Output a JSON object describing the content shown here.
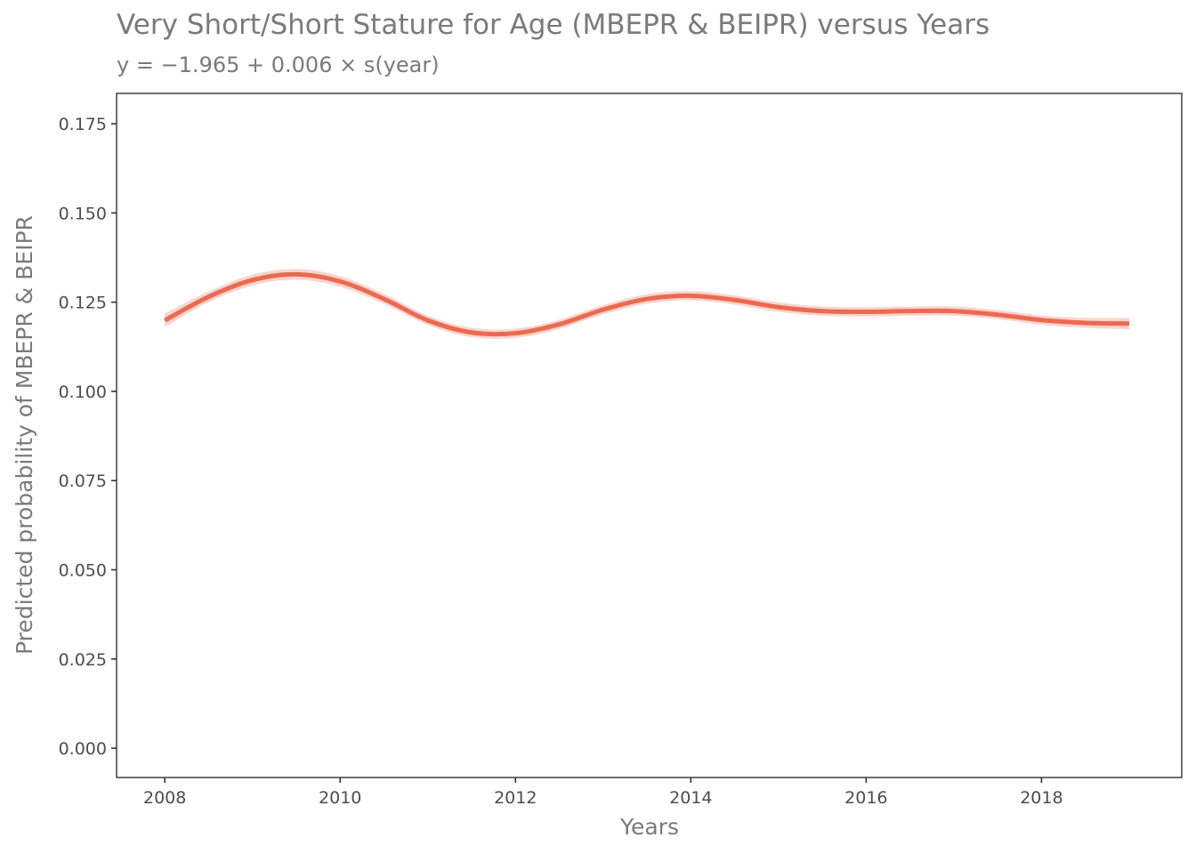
{
  "chart_data": {
    "type": "line",
    "title": "Very Short/Short Stature for Age (MBEPR & BEIPR) versus Years",
    "subtitle": "y = −1.965 + 0.006 × s(year)",
    "xlabel": "Years",
    "ylabel": "Predicted probability of MBEPR & BEIPR",
    "xlim": [
      2007.45,
      2019.6
    ],
    "ylim": [
      -0.0082,
      0.1835
    ],
    "x_ticks": [
      2008,
      2010,
      2012,
      2014,
      2016,
      2018
    ],
    "x_tick_labels": [
      "2008",
      "2010",
      "2012",
      "2014",
      "2016",
      "2018"
    ],
    "y_ticks": [
      0,
      0.025,
      0.05,
      0.075,
      0.1,
      0.125,
      0.15,
      0.175
    ],
    "y_tick_labels": [
      "0.000",
      "0.025",
      "0.050",
      "0.075",
      "0.100",
      "0.125",
      "0.150",
      "0.175"
    ],
    "grid": false,
    "line_color": "#ec6a4f",
    "band_color": "#f7c7bf",
    "series": [
      {
        "x": [
          2008,
          2008.5,
          2009,
          2009.5,
          2010,
          2010.5,
          2011,
          2011.5,
          2012,
          2012.5,
          2013,
          2013.5,
          2014,
          2014.5,
          2015,
          2015.5,
          2016,
          2016.5,
          2017,
          2017.5,
          2018,
          2018.5,
          2019
        ],
        "values": [
          0.1199,
          0.1265,
          0.1312,
          0.1328,
          0.1308,
          0.1259,
          0.1199,
          0.1165,
          0.1163,
          0.1188,
          0.1229,
          0.1259,
          0.1268,
          0.1256,
          0.1236,
          0.1225,
          0.1223,
          0.1225,
          0.1225,
          0.1215,
          0.12,
          0.1192,
          0.119
        ],
        "lower": [
          0.118,
          0.125,
          0.1297,
          0.1313,
          0.1293,
          0.1245,
          0.1186,
          0.1152,
          0.115,
          0.1175,
          0.1216,
          0.1246,
          0.1255,
          0.1243,
          0.1223,
          0.1212,
          0.121,
          0.1212,
          0.1212,
          0.1202,
          0.1187,
          0.1178,
          0.1174
        ],
        "upper": [
          0.1218,
          0.128,
          0.1327,
          0.1343,
          0.1323,
          0.1273,
          0.1212,
          0.1178,
          0.1176,
          0.1201,
          0.1242,
          0.1272,
          0.1281,
          0.1269,
          0.1249,
          0.1238,
          0.1236,
          0.1238,
          0.1238,
          0.1228,
          0.1213,
          0.1206,
          0.1206
        ]
      }
    ]
  }
}
